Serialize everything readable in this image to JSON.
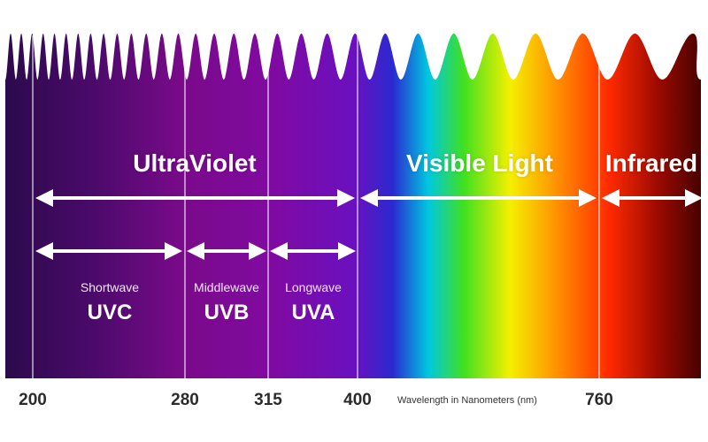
{
  "regions": {
    "ultraviolet": "UltraViolet",
    "visible": "Visible Light",
    "infrared": "Infrared"
  },
  "bands": [
    {
      "sub": "Shortwave",
      "name": "UVC"
    },
    {
      "sub": "Middlewave",
      "name": "UVB"
    },
    {
      "sub": "Longwave",
      "name": "UVA"
    }
  ],
  "ticks": [
    "200",
    "280",
    "315",
    "400",
    "760"
  ],
  "axis_caption": "Wavelength in Nanometers (nm)",
  "colors": {
    "uv_dark": "#2a0a4a",
    "uv_mid": "#7a0a8a",
    "uv_violet": "#6a10c0",
    "blue": "#2a2ad0",
    "cyan": "#00c8e0",
    "green": "#40e020",
    "yellow": "#f4f000",
    "orange": "#ff8c00",
    "red": "#ff2a00",
    "ir_dark": "#3a0000"
  }
}
